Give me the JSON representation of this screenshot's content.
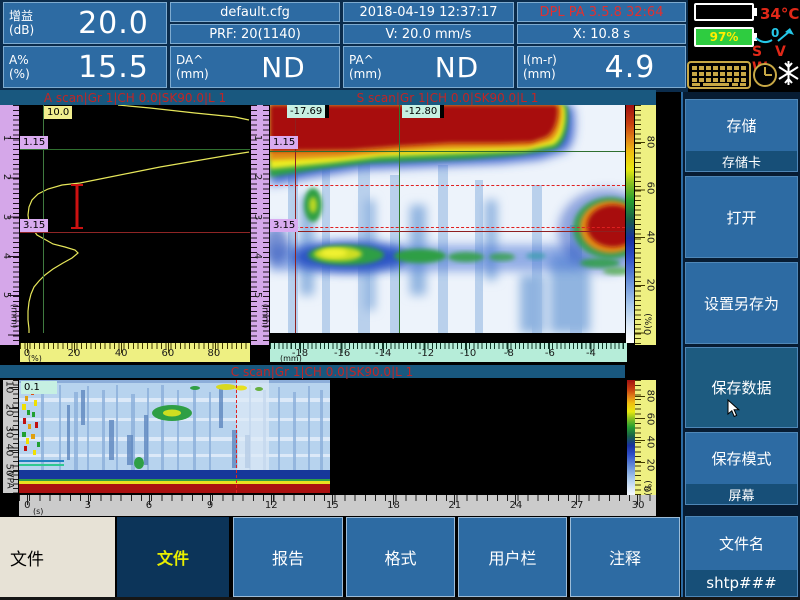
{
  "topbar": {
    "gain": {
      "label": "增益",
      "unit": "(dB)",
      "value": "20.0"
    },
    "amp": {
      "label": "A%",
      "unit": "(%)",
      "value": "15.5"
    },
    "config_file": "default.cfg",
    "prf": "PRF: 20(1140)",
    "datetime": "2018-04-19 12:37:17",
    "speed": "V: 20.0 mm/s",
    "version": "DPL PA 3.5.8  32:64",
    "x_readout": "X: 10.8  s",
    "da": {
      "label": "DA^",
      "unit": "(mm)",
      "value": "ND"
    },
    "pa": {
      "label": "PA^",
      "unit": "(mm)",
      "value": "ND"
    },
    "imr": {
      "label": "I(m-r)",
      "unit": "(mm)",
      "value": "4.9"
    },
    "status": {
      "temperature": "34°C",
      "battery2_level": "97%",
      "angle_value": "0",
      "probe_flags": "S V W"
    }
  },
  "ascan": {
    "title": "A scan|Gr 1|CH 0.0|SK90.0|L 1",
    "top_label": "10.0",
    "cursor1": "1.15",
    "cursor2": "3.15",
    "left_unit": "(mm)",
    "bottom_unit": "(%)",
    "left_ruler": {
      "orient": "v",
      "items": [
        {
          "t": "1",
          "p": 13.8
        },
        {
          "t": "2",
          "p": 30
        },
        {
          "t": "3",
          "p": 46.7
        },
        {
          "t": "4",
          "p": 62.9
        },
        {
          "t": "5",
          "p": 79.2
        }
      ]
    },
    "bottom_ruler": {
      "orient": "h",
      "items": [
        {
          "t": "0",
          "p": 3
        },
        {
          "t": "20",
          "p": 23.5
        },
        {
          "t": "40",
          "p": 44
        },
        {
          "t": "60",
          "p": 64.3
        },
        {
          "t": "80",
          "p": 84.3
        }
      ]
    },
    "waveform1": [
      [
        98,
        0
      ],
      [
        130,
        3
      ],
      [
        175,
        8
      ],
      [
        215,
        12
      ],
      [
        229,
        15
      ]
    ],
    "waveform2": [
      [
        229,
        47
      ],
      [
        210,
        50
      ],
      [
        175,
        56
      ],
      [
        140,
        62
      ],
      [
        110,
        68
      ],
      [
        85,
        73
      ],
      [
        60,
        78
      ],
      [
        42,
        80
      ],
      [
        28,
        84
      ],
      [
        18,
        89
      ],
      [
        12,
        95
      ],
      [
        9,
        102
      ],
      [
        8,
        110
      ],
      [
        9,
        117
      ],
      [
        12,
        123
      ],
      [
        17,
        130
      ],
      [
        26,
        135
      ],
      [
        33,
        139
      ],
      [
        45,
        142
      ],
      [
        55,
        145
      ],
      [
        58,
        148
      ],
      [
        52,
        153
      ],
      [
        43,
        158
      ],
      [
        33,
        164
      ],
      [
        25,
        170
      ],
      [
        19,
        176
      ],
      [
        14,
        182
      ],
      [
        11,
        189
      ],
      [
        9,
        197
      ],
      [
        8,
        206
      ],
      [
        8,
        215
      ],
      [
        9,
        224
      ],
      [
        9,
        228
      ]
    ]
  },
  "mid_ruler": {
    "unit": "(mm)",
    "ruler": {
      "orient": "v",
      "items": [
        {
          "t": "1",
          "p": 13.8
        },
        {
          "t": "2",
          "p": 30
        },
        {
          "t": "3",
          "p": 46.7
        },
        {
          "t": "4",
          "p": 62.9
        },
        {
          "t": "5",
          "p": 79.2
        }
      ]
    }
  },
  "sscan": {
    "title": "S scan|Gr 1|CH 0.0|SK90.0|L 1",
    "cursor_v1": "-17.69",
    "cursor_v2": "-12.80",
    "cursor_h1": "1.15",
    "cursor_h2": "3.15",
    "bottom_unit": "(mm)",
    "right_unit": "(%)",
    "bottom_ruler": {
      "orient": "h",
      "items": [
        {
          "t": "-18",
          "p": 8.4
        },
        {
          "t": "-16",
          "p": 20.2
        },
        {
          "t": "-14",
          "p": 31.7
        },
        {
          "t": "-12",
          "p": 43.7
        },
        {
          "t": "-10",
          "p": 55.5
        },
        {
          "t": "-8",
          "p": 66.9
        },
        {
          "t": "-6",
          "p": 78.4
        },
        {
          "t": "-4",
          "p": 89.9
        }
      ]
    },
    "right_ruler": {
      "orient": "v",
      "items": [
        {
          "t": "80",
          "p": 15.4
        },
        {
          "t": "60",
          "p": 34.6
        },
        {
          "t": "40",
          "p": 55
        },
        {
          "t": "20",
          "p": 75
        },
        {
          "t": "0",
          "p": 94.6
        }
      ]
    }
  },
  "cscan": {
    "title": "C scan|Gr 1|CH 0.0|SK90.0|L 1",
    "top_label": "0.1",
    "left_unit": "VPA",
    "bottom_unit": "(s)",
    "right_unit": "(%)",
    "left_ruler": {
      "orient": "v",
      "items": [
        {
          "t": "10",
          "p": 6.2
        },
        {
          "t": "20",
          "p": 26.5
        },
        {
          "t": "30",
          "p": 46
        },
        {
          "t": "40",
          "p": 62
        },
        {
          "t": "50",
          "p": 80
        }
      ]
    },
    "bottom_ruler": {
      "orient": "h",
      "items": [
        {
          "t": "0",
          "p": 1.3
        },
        {
          "t": "3",
          "p": 10.8
        },
        {
          "t": "6",
          "p": 20.4
        },
        {
          "t": "9",
          "p": 30
        },
        {
          "t": "12",
          "p": 39.6
        },
        {
          "t": "15",
          "p": 49.2
        },
        {
          "t": "18",
          "p": 58.8
        },
        {
          "t": "21",
          "p": 68.4
        },
        {
          "t": "24",
          "p": 78
        },
        {
          "t": "27",
          "p": 87.6
        },
        {
          "t": "30",
          "p": 97.2
        }
      ]
    },
    "right_ruler": {
      "orient": "v",
      "items": [
        {
          "t": "80",
          "p": 14
        },
        {
          "t": "60",
          "p": 33
        },
        {
          "t": "40",
          "p": 53
        },
        {
          "t": "20",
          "p": 73
        },
        {
          "t": "0",
          "p": 93
        }
      ]
    }
  },
  "sidebar": {
    "buttons": [
      {
        "label": "存储",
        "sub": "存储卡"
      },
      {
        "label": "打开"
      },
      {
        "label": "设置另存为"
      },
      {
        "label": "保存数据"
      },
      {
        "label": "保存模式",
        "sub": "屏幕"
      },
      {
        "label": "文件名",
        "sub": "shtp###"
      }
    ]
  },
  "bottombar": {
    "menu_label": "文件",
    "tabs": [
      {
        "label": "文件",
        "active": true
      },
      {
        "label": "报告"
      },
      {
        "label": "格式"
      },
      {
        "label": "用户栏"
      },
      {
        "label": "注释"
      }
    ]
  },
  "colors": {
    "cell_blue": "#2d6ba3",
    "highlight_blue": "#1d5b80",
    "title_red": "#c22525",
    "active_tab_text": "#e8ef00",
    "battery_green": "#2ecc40",
    "ruler_lavender": "#d5a7e9",
    "ruler_yellow": "#eef082",
    "ruler_mint": "#b6edd9"
  }
}
